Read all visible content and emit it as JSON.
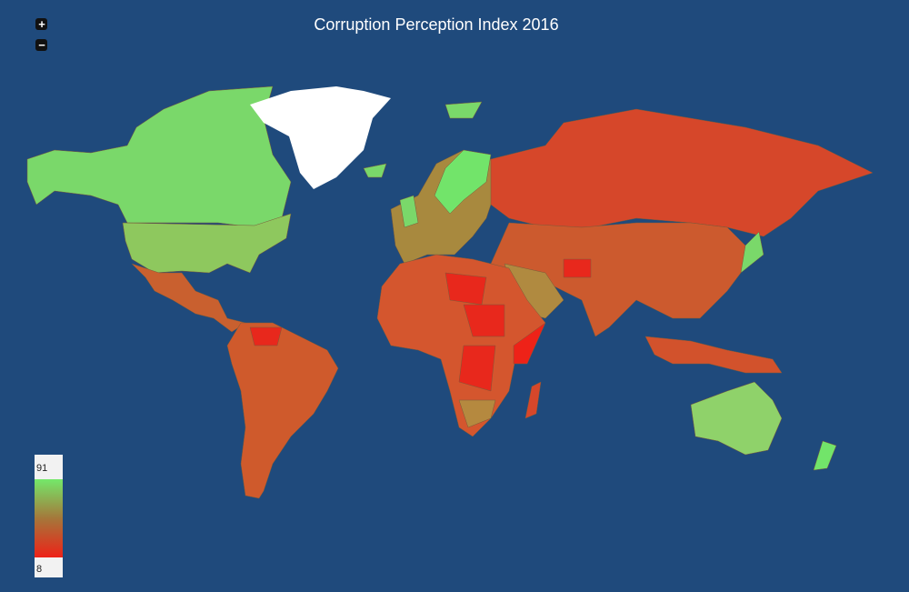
{
  "title": "Corruption Perception Index 2016",
  "zoom": {
    "in": "+",
    "out": "−"
  },
  "legend": {
    "max": 91,
    "min": 8,
    "colors": {
      "high": "#74e86a",
      "mid": "#a5773a",
      "low": "#ee2218"
    }
  }
}
